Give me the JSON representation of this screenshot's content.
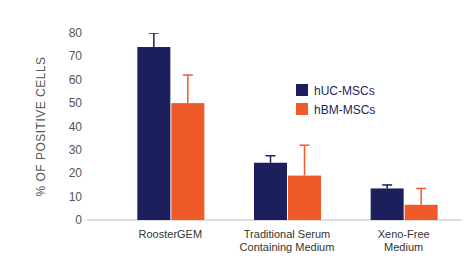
{
  "chart_data": {
    "type": "bar",
    "y_label": "% OF POSITIVE CELLS",
    "categories": [
      "RoosterGEM",
      "Traditional Serum Containing Medium",
      "Xeno-Free Medium"
    ],
    "series": [
      {
        "name": "hUC-MSCs",
        "color": "#1c1f5c",
        "values": [
          74,
          24.5,
          13.5
        ],
        "errors": [
          6,
          3,
          1.5
        ]
      },
      {
        "name": "hBM-MSCs",
        "color": "#f05a28",
        "values": [
          50,
          19,
          6.5
        ],
        "errors": [
          12,
          13,
          7
        ]
      }
    ],
    "ylim": [
      0,
      80
    ],
    "yticks": [
      0,
      10,
      20,
      30,
      40,
      50,
      60,
      70,
      80
    ],
    "grid": false,
    "legend": "upper right"
  }
}
